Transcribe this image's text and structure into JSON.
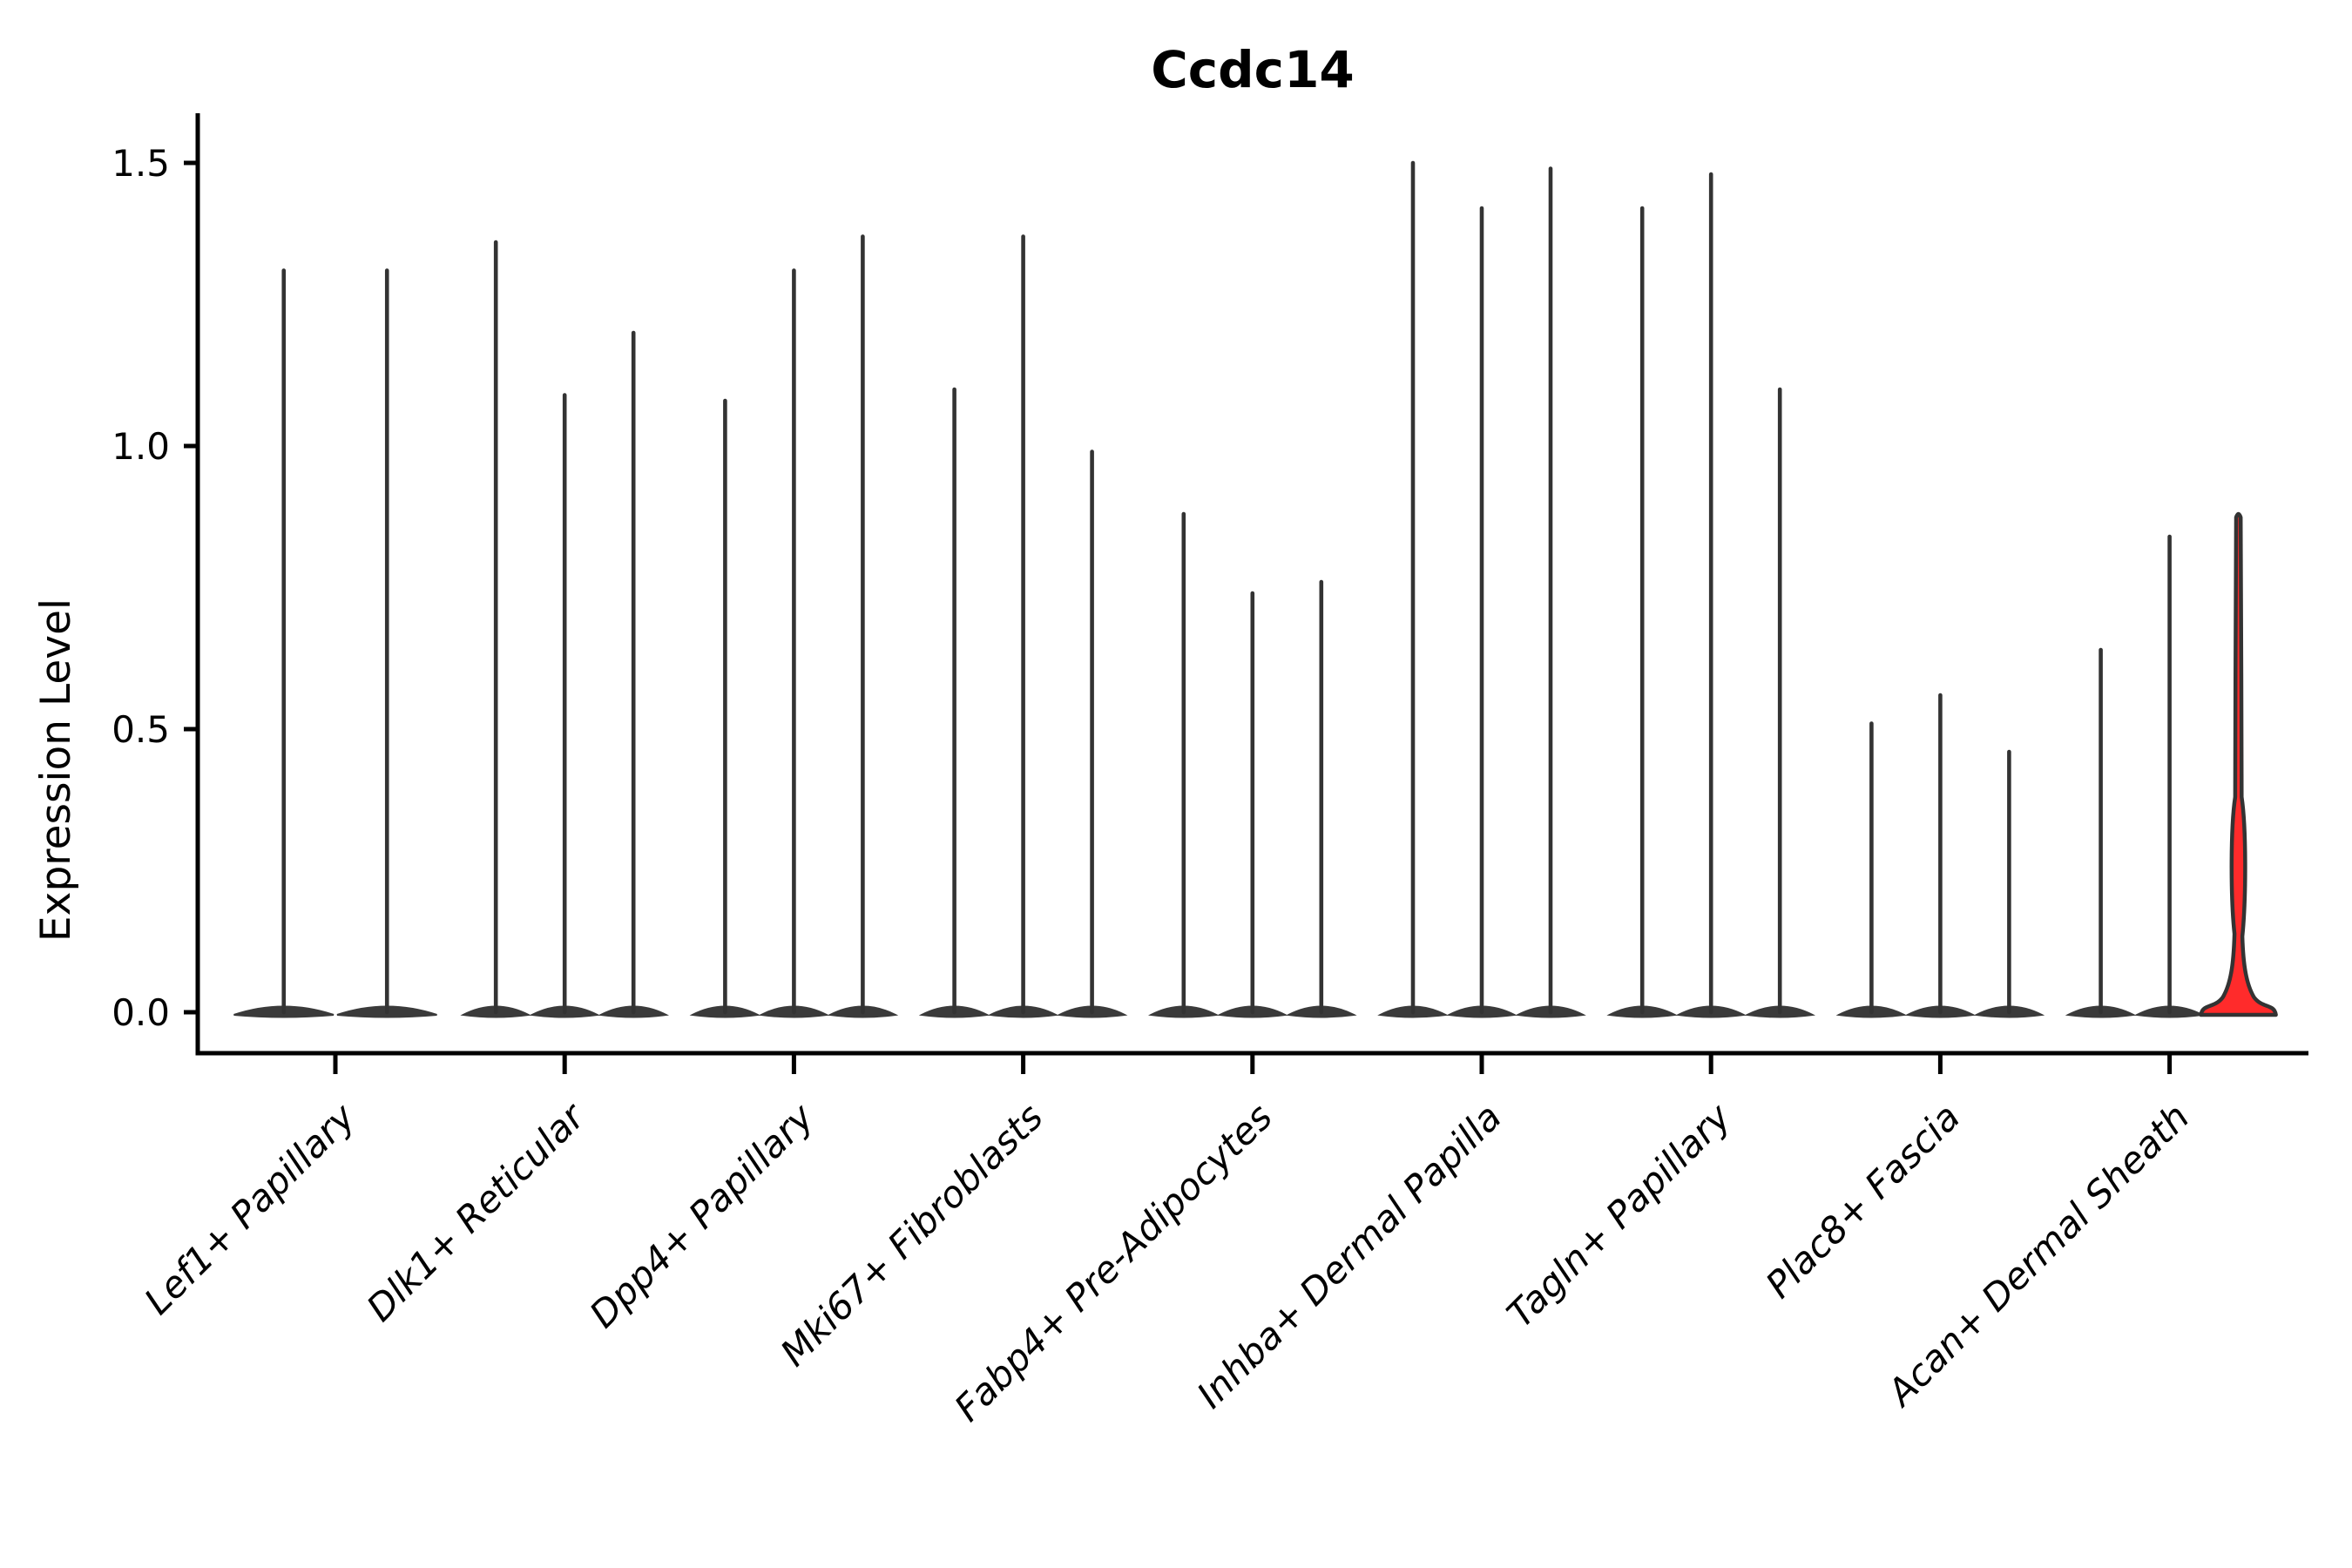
{
  "title": "Ccdc14",
  "ylabel": "Expression Level",
  "chart_data": {
    "type": "violin",
    "title": "Ccdc14",
    "xlabel": "",
    "ylabel": "Expression Level",
    "ylim": [
      -0.07,
      1.59
    ],
    "yticks": [
      0.0,
      0.5,
      1.0,
      1.5
    ],
    "ytick_labels": [
      "0.0",
      "0.5",
      "1.0",
      "1.5"
    ],
    "grid": false,
    "legend": "none",
    "x_label_rotation": 45,
    "categories": [
      "Lef1+ Papillary",
      "Dlk1+ Reticular",
      "Dpp4+ Papillary",
      "Mki67+ Fibroblasts",
      "Fabp4+ Pre-Adipocytes",
      "Inhba+ Dermal Papilla",
      "Tagln+ Papillary",
      "Plac8+ Fascia",
      "Acan+ Dermal Sheath"
    ],
    "description": "Each group shows 2-3 thin violins; nearly all density mass sits at expression 0 (wide flat base) with a thin spike up to the max expression value listed per violin.",
    "groups": [
      {
        "label": "Lef1+ Papillary",
        "violin_max_values": [
          1.31,
          1.31
        ]
      },
      {
        "label": "Dlk1+ Reticular",
        "violin_max_values": [
          1.36,
          1.09,
          1.2
        ]
      },
      {
        "label": "Dpp4+ Papillary",
        "violin_max_values": [
          1.08,
          1.31,
          1.37
        ]
      },
      {
        "label": "Mki67+ Fibroblasts",
        "violin_max_values": [
          1.1,
          1.37,
          0.99
        ]
      },
      {
        "label": "Fabp4+ Pre-Adipocytes",
        "violin_max_values": [
          0.88,
          0.74,
          0.76
        ]
      },
      {
        "label": "Inhba+ Dermal Papilla",
        "violin_max_values": [
          1.5,
          1.42,
          1.49
        ]
      },
      {
        "label": "Tagln+ Papillary",
        "violin_max_values": [
          1.42,
          1.48,
          1.1
        ]
      },
      {
        "label": "Plac8+ Fascia",
        "violin_max_values": [
          0.51,
          0.56,
          0.46
        ]
      },
      {
        "label": "Acan+ Dermal Sheath",
        "violin_max_values": [
          0.64,
          0.84,
          0.88
        ],
        "highlight_index": 2,
        "highlight_bulge_at": 0.26
      }
    ],
    "colors": {
      "violin_fill": "#3a3a3a",
      "violin_edge": "#333333",
      "highlight_fill": "#ff2b2b",
      "axis": "#000000",
      "text": "#000000",
      "background": "#ffffff"
    }
  }
}
